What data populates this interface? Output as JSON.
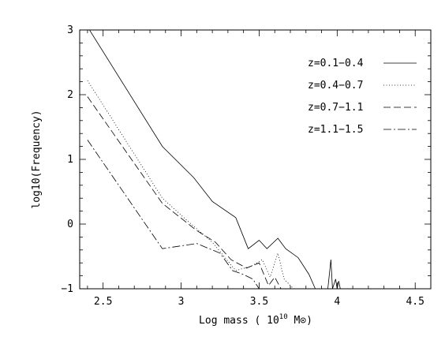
{
  "chart_data": {
    "type": "line",
    "title": "",
    "xlabel": "Log mass ( 10",
    "xlabel_sup": "10",
    "xlabel_unit": " M⊙)",
    "ylabel": "log10(Frequency)",
    "xlim": [
      2.35,
      4.6
    ],
    "ylim": [
      -1,
      3
    ],
    "x_ticks": [
      2.5,
      3,
      3.5,
      4,
      4.5
    ],
    "x_tick_labels": [
      "2.5",
      "3",
      "3.5",
      "4",
      "4.5"
    ],
    "y_ticks": [
      -1,
      0,
      1,
      2,
      3
    ],
    "y_tick_labels": [
      "−1",
      "0",
      "1",
      "2",
      "3"
    ],
    "legend_position": "top-right",
    "grid": false,
    "series": [
      {
        "name": "z=0.1−0.4",
        "dash": "solid",
        "points": [
          [
            2.4,
            3.05
          ],
          [
            2.88,
            1.2
          ],
          [
            3.08,
            0.72
          ],
          [
            3.2,
            0.35
          ],
          [
            3.35,
            0.1
          ],
          [
            3.43,
            -0.38
          ],
          [
            3.5,
            -0.25
          ],
          [
            3.55,
            -0.38
          ],
          [
            3.62,
            -0.22
          ],
          [
            3.67,
            -0.38
          ],
          [
            3.75,
            -0.52
          ],
          [
            3.82,
            -0.78
          ],
          [
            3.86,
            -1.0
          ],
          [
            3.94,
            -1.0
          ],
          [
            3.96,
            -0.55
          ],
          [
            3.97,
            -1.0
          ],
          [
            3.99,
            -0.85
          ],
          [
            4.0,
            -1.0
          ],
          [
            4.01,
            -0.88
          ],
          [
            4.02,
            -1.0
          ]
        ]
      },
      {
        "name": "z=0.4−0.7",
        "dash": "1,2.5",
        "points": [
          [
            2.4,
            2.22
          ],
          [
            2.88,
            0.4
          ],
          [
            3.05,
            0.03
          ],
          [
            3.2,
            -0.28
          ],
          [
            3.35,
            -0.72
          ],
          [
            3.45,
            -0.65
          ],
          [
            3.52,
            -0.55
          ],
          [
            3.57,
            -0.82
          ],
          [
            3.62,
            -0.45
          ],
          [
            3.66,
            -0.85
          ],
          [
            3.72,
            -1.0
          ]
        ]
      },
      {
        "name": "z=0.7−1.1",
        "dash": "9,4",
        "points": [
          [
            2.4,
            1.97
          ],
          [
            2.88,
            0.32
          ],
          [
            3.1,
            -0.1
          ],
          [
            3.22,
            -0.28
          ],
          [
            3.32,
            -0.55
          ],
          [
            3.42,
            -0.68
          ],
          [
            3.5,
            -0.6
          ],
          [
            3.56,
            -0.95
          ],
          [
            3.6,
            -0.82
          ],
          [
            3.64,
            -1.0
          ]
        ]
      },
      {
        "name": "z=1.1−1.5",
        "dash": "10,3,2,3",
        "points": [
          [
            2.4,
            1.3
          ],
          [
            2.88,
            -0.38
          ],
          [
            3.1,
            -0.3
          ],
          [
            3.25,
            -0.45
          ],
          [
            3.33,
            -0.72
          ],
          [
            3.4,
            -0.78
          ],
          [
            3.46,
            -0.85
          ],
          [
            3.5,
            -1.0
          ]
        ]
      }
    ]
  }
}
